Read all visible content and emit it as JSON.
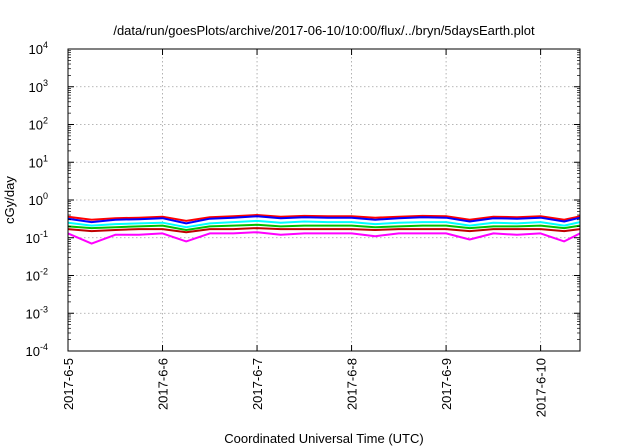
{
  "chart_data": {
    "type": "line",
    "title": "/data/run/goesPlots/archive/2017-06-10/10:00/flux/../bryn/5daysEarth.plot",
    "xlabel": "Coordinated Universal Time (UTC)",
    "ylabel": "cGy/day",
    "yscale": "log",
    "ylim": [
      0.0001,
      10000
    ],
    "xlim": [
      "2017-06-05 00:00",
      "2017-06-10 10:00"
    ],
    "grid": true,
    "x_ticks": [
      "2017-6-5",
      "2017-6-6",
      "2017-6-7",
      "2017-6-8",
      "2017-6-9",
      "2017-6-10"
    ],
    "y_ticks": [
      {
        "base": "10",
        "exp": "-4"
      },
      {
        "base": "10",
        "exp": "-3"
      },
      {
        "base": "10",
        "exp": "-2"
      },
      {
        "base": "10",
        "exp": "-1"
      },
      {
        "base": "10",
        "exp": "0"
      },
      {
        "base": "10",
        "exp": "1"
      },
      {
        "base": "10",
        "exp": "2"
      },
      {
        "base": "10",
        "exp": "3"
      },
      {
        "base": "10",
        "exp": "4"
      }
    ],
    "x": [
      "2017-06-05 00:00",
      "2017-06-05 06:00",
      "2017-06-05 12:00",
      "2017-06-05 18:00",
      "2017-06-06 00:00",
      "2017-06-06 06:00",
      "2017-06-06 12:00",
      "2017-06-06 18:00",
      "2017-06-07 00:00",
      "2017-06-07 06:00",
      "2017-06-07 12:00",
      "2017-06-07 18:00",
      "2017-06-08 00:00",
      "2017-06-08 06:00",
      "2017-06-08 12:00",
      "2017-06-08 18:00",
      "2017-06-09 00:00",
      "2017-06-09 06:00",
      "2017-06-09 12:00",
      "2017-06-09 18:00",
      "2017-06-10 00:00",
      "2017-06-10 06:00",
      "2017-06-10 10:00"
    ],
    "series": [
      {
        "color": "#ff0000",
        "values": [
          0.36,
          0.3,
          0.33,
          0.34,
          0.36,
          0.28,
          0.35,
          0.37,
          0.4,
          0.36,
          0.38,
          0.37,
          0.37,
          0.34,
          0.36,
          0.38,
          0.37,
          0.3,
          0.36,
          0.35,
          0.37,
          0.3,
          0.37
        ]
      },
      {
        "color": "#0000ff",
        "values": [
          0.32,
          0.26,
          0.3,
          0.31,
          0.33,
          0.24,
          0.32,
          0.34,
          0.37,
          0.33,
          0.35,
          0.34,
          0.34,
          0.3,
          0.33,
          0.35,
          0.34,
          0.27,
          0.33,
          0.32,
          0.34,
          0.27,
          0.34
        ]
      },
      {
        "color": "#00ffff",
        "values": [
          0.25,
          0.21,
          0.23,
          0.24,
          0.25,
          0.19,
          0.24,
          0.26,
          0.28,
          0.25,
          0.27,
          0.26,
          0.26,
          0.23,
          0.25,
          0.26,
          0.26,
          0.21,
          0.25,
          0.24,
          0.26,
          0.21,
          0.26
        ]
      },
      {
        "color": "#00c000",
        "values": [
          0.2,
          0.18,
          0.19,
          0.2,
          0.21,
          0.16,
          0.2,
          0.21,
          0.22,
          0.2,
          0.21,
          0.21,
          0.21,
          0.19,
          0.2,
          0.21,
          0.21,
          0.18,
          0.2,
          0.2,
          0.21,
          0.18,
          0.21
        ]
      },
      {
        "color": "#c00000",
        "values": [
          0.17,
          0.15,
          0.16,
          0.17,
          0.17,
          0.14,
          0.17,
          0.17,
          0.18,
          0.17,
          0.17,
          0.17,
          0.17,
          0.16,
          0.17,
          0.17,
          0.17,
          0.15,
          0.17,
          0.17,
          0.17,
          0.15,
          0.17
        ]
      },
      {
        "color": "#ff00ff",
        "values": [
          0.13,
          0.07,
          0.12,
          0.12,
          0.13,
          0.08,
          0.13,
          0.13,
          0.14,
          0.12,
          0.13,
          0.13,
          0.13,
          0.11,
          0.13,
          0.13,
          0.13,
          0.09,
          0.13,
          0.12,
          0.13,
          0.08,
          0.13
        ]
      }
    ]
  }
}
